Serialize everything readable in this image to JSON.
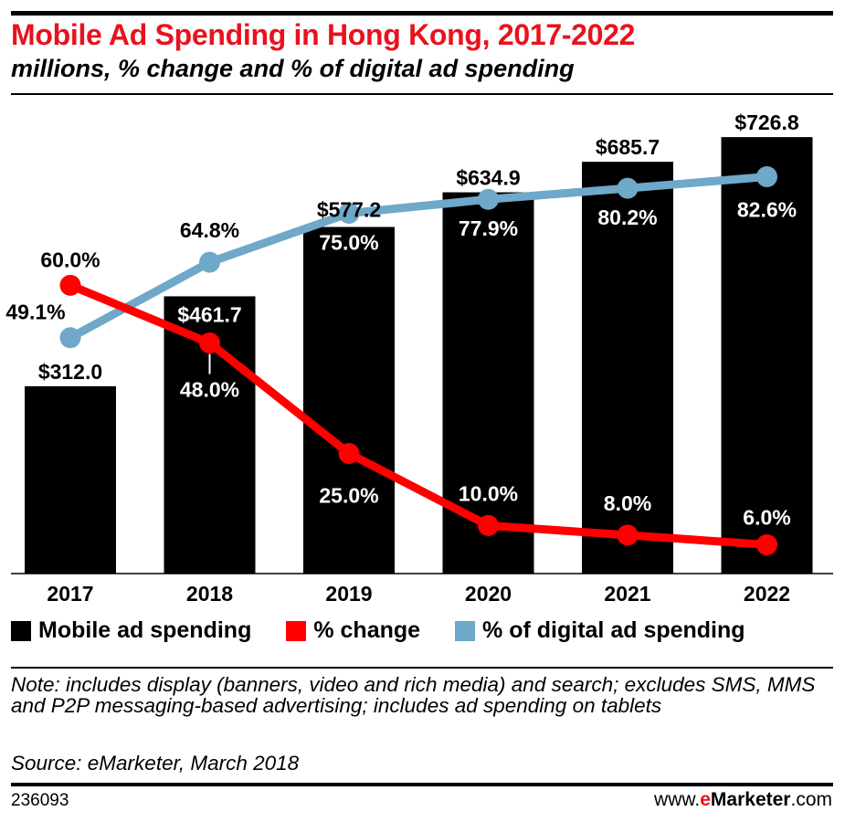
{
  "title": "Mobile Ad Spending in Hong Kong, 2017-2022",
  "subtitle": "millions, % change and % of digital ad spending",
  "chart_data": {
    "type": "bar",
    "categories": [
      "2017",
      "2018",
      "2019",
      "2020",
      "2021",
      "2022"
    ],
    "ylim": [
      0,
      800
    ],
    "pct_ylim": [
      0,
      100
    ],
    "series": [
      {
        "name": "Mobile ad spending",
        "type": "bar",
        "color": "#000000",
        "values": [
          312.0,
          461.7,
          577.2,
          634.9,
          685.7,
          726.8
        ],
        "labels": [
          "$312.0",
          "$461.7",
          "$577.2",
          "$634.9",
          "$685.7",
          "$726.8"
        ]
      },
      {
        "name": "% change",
        "type": "line",
        "color": "#ff0000",
        "values": [
          60.0,
          48.0,
          25.0,
          10.0,
          8.0,
          6.0
        ],
        "labels": [
          "60.0%",
          "48.0%",
          "25.0%",
          "10.0%",
          "8.0%",
          "6.0%"
        ]
      },
      {
        "name": "% of digital ad spending",
        "type": "line",
        "color": "#6fa8c8",
        "values": [
          49.1,
          64.8,
          75.0,
          77.9,
          80.2,
          82.6
        ],
        "labels": [
          "49.1%",
          "64.8%",
          "75.0%",
          "77.9%",
          "80.2%",
          "82.6%"
        ]
      }
    ],
    "grid": false,
    "legend_position": "bottom"
  },
  "note": "Note: includes display (banners, video and rich media) and search; excludes SMS, MMS and P2P messaging-based advertising; includes ad spending on tablets",
  "source": "Source: eMarketer, March 2018",
  "chart_id": "236093",
  "brand": {
    "prefix": "www.",
    "e": "e",
    "name": "Marketer",
    "suffix": ".com"
  }
}
